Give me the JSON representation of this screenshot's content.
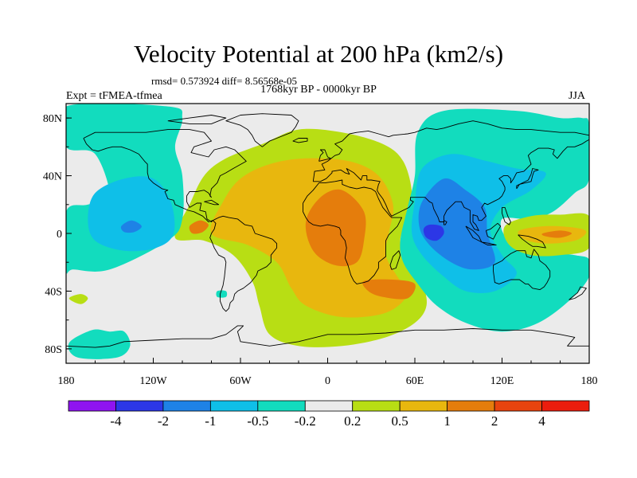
{
  "chart_data": {
    "type": "heatmap",
    "title": "Velocity Potential at 200 hPa (km2/s)",
    "stats_text": "rmsd= 0.573924 diff= 8.56568e-05",
    "period": "1768kyr BP - 0000kyr BP",
    "experiment": "Expt = tFMEA-tfmea",
    "season": "JJA",
    "x_range": [
      -180,
      180
    ],
    "y_range": [
      -90,
      90
    ],
    "x_ticks": [
      {
        "value": -180,
        "label": "180"
      },
      {
        "value": -120,
        "label": "120W"
      },
      {
        "value": -60,
        "label": "60W"
      },
      {
        "value": 0,
        "label": "0"
      },
      {
        "value": 60,
        "label": "60E"
      },
      {
        "value": 120,
        "label": "120E"
      },
      {
        "value": 180,
        "label": "180"
      }
    ],
    "y_ticks": [
      {
        "value": 80,
        "label": "80N"
      },
      {
        "value": 40,
        "label": "40N"
      },
      {
        "value": 0,
        "label": "0"
      },
      {
        "value": -40,
        "label": "40S"
      },
      {
        "value": -80,
        "label": "80S"
      }
    ],
    "levels": [
      -4,
      -2,
      -1,
      -0.5,
      -0.2,
      0.2,
      0.5,
      1,
      2,
      4
    ],
    "level_labels": [
      "-4",
      "-2",
      "-1",
      "-0.5",
      "-0.2",
      "0.2",
      "0.5",
      "1",
      "2",
      "4"
    ],
    "colors": [
      "#8f14f0",
      "#2c37e6",
      "#1e82e6",
      "#0fbfe8",
      "#12dcbe",
      "#ebebeb",
      "#b8de14",
      "#e8b70e",
      "#e57d0c",
      "#e8440e",
      "#eb1d0d"
    ],
    "contour_regions": [
      {
        "level_index": 6,
        "label": "0.2 to 0.5",
        "points": [
          [
            -105,
            -3
          ],
          [
            -95,
            20
          ],
          [
            -85,
            40
          ],
          [
            -70,
            52
          ],
          [
            -45,
            62
          ],
          [
            -20,
            72
          ],
          [
            10,
            70
          ],
          [
            38,
            62
          ],
          [
            52,
            50
          ],
          [
            58,
            28
          ],
          [
            55,
            10
          ],
          [
            50,
            -5
          ],
          [
            55,
            -22
          ],
          [
            65,
            -35
          ],
          [
            68,
            -50
          ],
          [
            60,
            -62
          ],
          [
            40,
            -72
          ],
          [
            10,
            -78
          ],
          [
            -20,
            -78
          ],
          [
            -40,
            -70
          ],
          [
            -47,
            -50
          ],
          [
            -52,
            -33
          ],
          [
            -65,
            -15
          ],
          [
            -85,
            -5
          ]
        ]
      },
      {
        "level_index": 7,
        "label": "0.5 to 1",
        "points": [
          [
            -80,
            0
          ],
          [
            -72,
            22
          ],
          [
            -60,
            38
          ],
          [
            -40,
            48
          ],
          [
            -15,
            52
          ],
          [
            15,
            50
          ],
          [
            35,
            40
          ],
          [
            45,
            20
          ],
          [
            42,
            0
          ],
          [
            40,
            -15
          ],
          [
            48,
            -30
          ],
          [
            55,
            -42
          ],
          [
            40,
            -55
          ],
          [
            10,
            -58
          ],
          [
            -15,
            -50
          ],
          [
            -25,
            -38
          ],
          [
            -35,
            -20
          ],
          [
            -55,
            -8
          ]
        ]
      },
      {
        "level_index": 8,
        "label": "1 to 2",
        "points": [
          [
            -15,
            8
          ],
          [
            -5,
            25
          ],
          [
            10,
            30
          ],
          [
            25,
            15
          ],
          [
            25,
            -5
          ],
          [
            20,
            -20
          ],
          [
            5,
            -22
          ],
          [
            -10,
            -12
          ]
        ]
      },
      {
        "level_index": 8,
        "label": "1 to 2",
        "points": [
          [
            25,
            -33
          ],
          [
            45,
            -32
          ],
          [
            60,
            -35
          ],
          [
            55,
            -45
          ],
          [
            38,
            -44
          ],
          [
            28,
            -40
          ]
        ]
      },
      {
        "level_index": 8,
        "label": "1 to 2",
        "points": [
          [
            -95,
            5
          ],
          [
            -88,
            9
          ],
          [
            -82,
            6
          ],
          [
            -86,
            1
          ],
          [
            -93,
            0
          ]
        ]
      },
      {
        "level_index": 4,
        "label": "-0.5 to -0.2",
        "points": [
          [
            55,
            18
          ],
          [
            60,
            40
          ],
          [
            62,
            70
          ],
          [
            80,
            85
          ],
          [
            130,
            85
          ],
          [
            160,
            80
          ],
          [
            175,
            80
          ],
          [
            180,
            75
          ],
          [
            180,
            38
          ],
          [
            170,
            28
          ],
          [
            155,
            15
          ],
          [
            140,
            10
          ],
          [
            120,
            10
          ],
          [
            125,
            -5
          ],
          [
            150,
            -12
          ],
          [
            170,
            -15
          ],
          [
            180,
            -18
          ],
          [
            180,
            -30
          ],
          [
            168,
            -45
          ],
          [
            145,
            -62
          ],
          [
            120,
            -68
          ],
          [
            95,
            -62
          ],
          [
            75,
            -50
          ],
          [
            62,
            -35
          ],
          [
            52,
            -20
          ],
          [
            50,
            -5
          ]
        ]
      },
      {
        "level_index": 3,
        "label": "-1 to -0.5",
        "points": [
          [
            60,
            22
          ],
          [
            65,
            45
          ],
          [
            85,
            55
          ],
          [
            110,
            50
          ],
          [
            130,
            45
          ],
          [
            150,
            42
          ],
          [
            140,
            30
          ],
          [
            120,
            18
          ],
          [
            112,
            2
          ],
          [
            120,
            -15
          ],
          [
            130,
            -28
          ],
          [
            115,
            -40
          ],
          [
            95,
            -40
          ],
          [
            80,
            -30
          ],
          [
            65,
            -15
          ],
          [
            58,
            0
          ]
        ]
      },
      {
        "level_index": 2,
        "label": "-2 to -1",
        "points": [
          [
            65,
            22
          ],
          [
            80,
            38
          ],
          [
            95,
            30
          ],
          [
            108,
            18
          ],
          [
            110,
            0
          ],
          [
            115,
            -20
          ],
          [
            100,
            -25
          ],
          [
            85,
            -20
          ],
          [
            70,
            -8
          ],
          [
            63,
            5
          ]
        ]
      },
      {
        "level_index": 1,
        "label": "-4 to -2",
        "points": [
          [
            66,
            3
          ],
          [
            70,
            6
          ],
          [
            78,
            5
          ],
          [
            80,
            0
          ],
          [
            75,
            -5
          ],
          [
            68,
            -3
          ]
        ]
      },
      {
        "level_index": 4,
        "label": "-0.5 to -0.2",
        "points": [
          [
            -180,
            88
          ],
          [
            -110,
            88
          ],
          [
            -100,
            80
          ],
          [
            -105,
            60
          ],
          [
            -100,
            40
          ],
          [
            -100,
            10
          ],
          [
            -110,
            -5
          ],
          [
            -150,
            -25
          ],
          [
            -175,
            -25
          ],
          [
            -180,
            -25
          ],
          [
            -180,
            15
          ],
          [
            -165,
            20
          ],
          [
            -150,
            25
          ],
          [
            -160,
            55
          ],
          [
            -180,
            60
          ]
        ]
      },
      {
        "level_index": 3,
        "label": "-1 to -0.5",
        "points": [
          [
            -160,
            28
          ],
          [
            -140,
            38
          ],
          [
            -120,
            38
          ],
          [
            -108,
            22
          ],
          [
            -106,
            0
          ],
          [
            -118,
            -10
          ],
          [
            -140,
            -12
          ],
          [
            -160,
            -5
          ],
          [
            -165,
            10
          ]
        ]
      },
      {
        "level_index": 2,
        "label": "-2 to -1",
        "points": [
          [
            -142,
            5
          ],
          [
            -135,
            9
          ],
          [
            -128,
            5
          ],
          [
            -133,
            1
          ],
          [
            -140,
            1
          ]
        ]
      },
      {
        "level_index": 4,
        "label": "-0.5 to -0.2",
        "points": [
          [
            -162,
            -67
          ],
          [
            -150,
            -68
          ],
          [
            -140,
            -68
          ],
          [
            -136,
            -78
          ],
          [
            -145,
            -86
          ],
          [
            -172,
            -86
          ],
          [
            -178,
            -76
          ]
        ]
      },
      {
        "level_index": 6,
        "label": "0.2 to 0.5",
        "points": [
          [
            -178,
            -45
          ],
          [
            -170,
            -42
          ],
          [
            -165,
            -45
          ],
          [
            -170,
            -49
          ]
        ]
      },
      {
        "level_index": 4,
        "label": "-0.5 to -0.2",
        "points": [
          [
            -76,
            -40
          ],
          [
            -70,
            -40
          ],
          [
            -70,
            -44
          ],
          [
            -76,
            -44
          ]
        ]
      },
      {
        "level_index": 6,
        "label": "0.2 to 0.5",
        "points": [
          [
            122,
            5
          ],
          [
            140,
            12
          ],
          [
            160,
            13
          ],
          [
            180,
            12
          ],
          [
            180,
            -10
          ],
          [
            160,
            -15
          ],
          [
            140,
            -15
          ],
          [
            125,
            -8
          ]
        ]
      },
      {
        "level_index": 7,
        "label": "0.5 to 1",
        "points": [
          [
            132,
            2
          ],
          [
            150,
            5
          ],
          [
            170,
            4
          ],
          [
            178,
            1
          ],
          [
            170,
            -5
          ],
          [
            150,
            -7
          ],
          [
            135,
            -4
          ]
        ]
      },
      {
        "level_index": 8,
        "label": "1 to 2",
        "points": [
          [
            148,
            0
          ],
          [
            160,
            2
          ],
          [
            168,
            0
          ],
          [
            160,
            -3
          ],
          [
            150,
            -2
          ]
        ]
      }
    ]
  }
}
